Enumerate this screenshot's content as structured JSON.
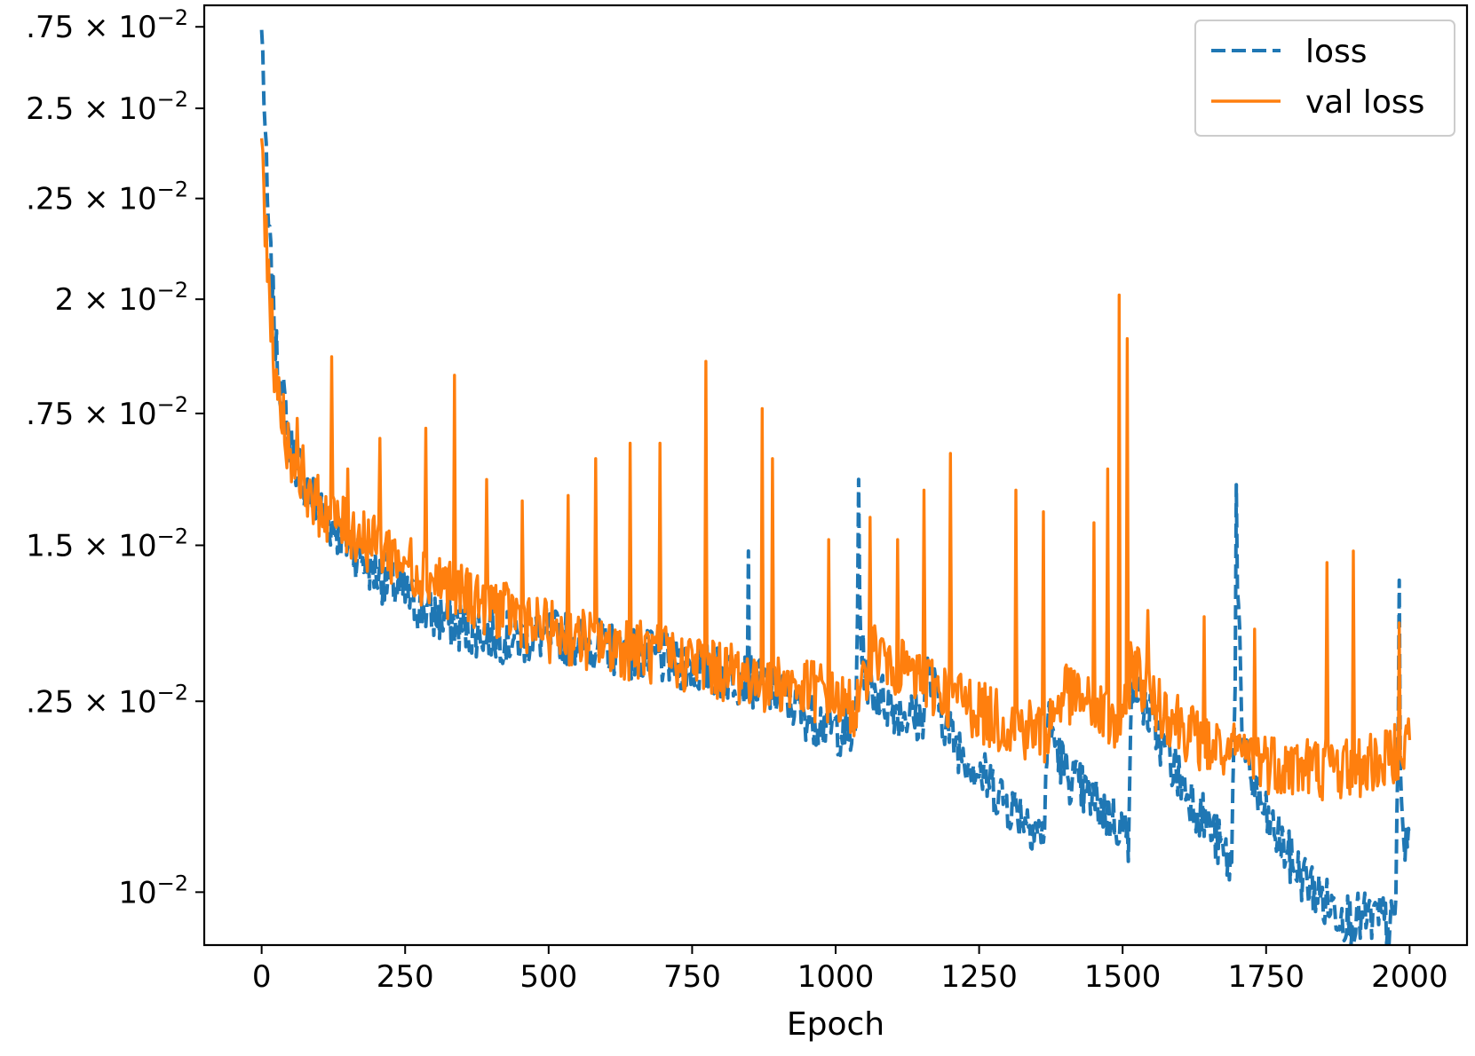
{
  "chart_data": {
    "type": "line",
    "xlabel": "Epoch",
    "ylabel": "",
    "title": "",
    "xlim": [
      -100,
      2100
    ],
    "ylim": [
      0.0094,
      0.0282
    ],
    "yscale": "log",
    "grid": false,
    "legend_position": "top-right",
    "x_ticks": [
      0,
      250,
      500,
      750,
      1000,
      1250,
      1500,
      1750,
      2000
    ],
    "x_tick_labels": [
      "0",
      "250",
      "500",
      "750",
      "1000",
      "1250",
      "1500",
      "1750",
      "2000"
    ],
    "y_ticks": [
      0.01,
      0.0125,
      0.015,
      0.0175,
      0.02,
      0.0225,
      0.025,
      0.0275
    ],
    "y_tick_labels": [
      {
        "mantissa": "",
        "exp": "−2"
      },
      {
        "mantissa": ".25",
        "exp": "−2"
      },
      {
        "mantissa": "1.5",
        "exp": "−2"
      },
      {
        "mantissa": ".75",
        "exp": "−2"
      },
      {
        "mantissa": "2",
        "exp": "−2"
      },
      {
        "mantissa": ".25",
        "exp": "−2"
      },
      {
        "mantissa": "2.5",
        "exp": "−2"
      },
      {
        "mantissa": ".75",
        "exp": "−2"
      }
    ],
    "series": [
      {
        "name": "loss",
        "color": "#1f77b4",
        "style": "dashed",
        "x": [
          0,
          10,
          25,
          50,
          75,
          100,
          150,
          200,
          250,
          300,
          350,
          400,
          450,
          500,
          550,
          600,
          650,
          700,
          750,
          800,
          850,
          900,
          950,
          1000,
          1035,
          1040,
          1045,
          1060,
          1100,
          1150,
          1160,
          1200,
          1250,
          1300,
          1350,
          1362,
          1370,
          1400,
          1450,
          1500,
          1510,
          1515,
          1550,
          1600,
          1650,
          1690,
          1700,
          1710,
          1750,
          1800,
          1850,
          1900,
          1950,
          1975,
          1980,
          1990,
          2000
        ],
        "y": [
          0.0274,
          0.022,
          0.0186,
          0.0167,
          0.016,
          0.0155,
          0.0149,
          0.0144,
          0.014,
          0.0137,
          0.0135,
          0.0134,
          0.0133,
          0.0134,
          0.0133,
          0.0132,
          0.0131,
          0.013,
          0.0129,
          0.0128,
          0.0127,
          0.0125,
          0.0122,
          0.012,
          0.0119,
          0.0148,
          0.0131,
          0.0126,
          0.0123,
          0.0121,
          0.0128,
          0.0119,
          0.0114,
          0.011,
          0.0107,
          0.0105,
          0.0121,
          0.0114,
          0.011,
          0.0107,
          0.0105,
          0.0128,
          0.0121,
          0.0113,
          0.0107,
          0.0102,
          0.0145,
          0.0116,
          0.0108,
          0.0102,
          0.0098,
          0.0096,
          0.0096,
          0.0095,
          0.0118,
          0.0104,
          0.0106
        ]
      },
      {
        "name": "val loss",
        "color": "#ff7f0e",
        "style": "solid",
        "x": [
          0,
          10,
          25,
          50,
          75,
          100,
          150,
          200,
          250,
          300,
          350,
          400,
          450,
          500,
          550,
          600,
          650,
          700,
          750,
          800,
          850,
          900,
          950,
          1000,
          1040,
          1060,
          1100,
          1150,
          1200,
          1250,
          1300,
          1350,
          1362,
          1400,
          1450,
          1500,
          1515,
          1550,
          1600,
          1650,
          1700,
          1750,
          1800,
          1850,
          1900,
          1950,
          2000
        ],
        "y": [
          0.0235,
          0.0205,
          0.0178,
          0.0165,
          0.016,
          0.0155,
          0.0151,
          0.0148,
          0.0145,
          0.0142,
          0.014,
          0.0138,
          0.0136,
          0.0134,
          0.0133,
          0.0132,
          0.0131,
          0.013,
          0.0129,
          0.0128,
          0.0127,
          0.0126,
          0.0125,
          0.0124,
          0.0122,
          0.0131,
          0.0129,
          0.0126,
          0.0124,
          0.0122,
          0.012,
          0.0119,
          0.0118,
          0.0125,
          0.0122,
          0.0119,
          0.0129,
          0.0124,
          0.012,
          0.0117,
          0.0116,
          0.0115,
          0.0114,
          0.0114,
          0.0114,
          0.0115,
          0.0118
        ]
      }
    ],
    "spikes": [
      {
        "series": "loss",
        "x": 0,
        "y": 0.0274
      },
      {
        "series": "loss",
        "x": 1040,
        "y": 0.0162
      },
      {
        "series": "loss",
        "x": 1698,
        "y": 0.0161
      },
      {
        "series": "loss",
        "x": 1982,
        "y": 0.0144
      },
      {
        "series": "loss",
        "x": 848,
        "y": 0.0149
      },
      {
        "series": "val loss",
        "x": 2,
        "y": 0.0238
      },
      {
        "series": "val loss",
        "x": 62,
        "y": 0.0174
      },
      {
        "series": "val loss",
        "x": 122,
        "y": 0.0187
      },
      {
        "series": "val loss",
        "x": 150,
        "y": 0.0164
      },
      {
        "series": "val loss",
        "x": 207,
        "y": 0.017
      },
      {
        "series": "val loss",
        "x": 286,
        "y": 0.0172
      },
      {
        "series": "val loss",
        "x": 337,
        "y": 0.0183
      },
      {
        "series": "val loss",
        "x": 393,
        "y": 0.0162
      },
      {
        "series": "val loss",
        "x": 455,
        "y": 0.0158
      },
      {
        "series": "val loss",
        "x": 535,
        "y": 0.0159
      },
      {
        "series": "val loss",
        "x": 582,
        "y": 0.0166
      },
      {
        "series": "val loss",
        "x": 643,
        "y": 0.0169
      },
      {
        "series": "val loss",
        "x": 695,
        "y": 0.0169
      },
      {
        "series": "val loss",
        "x": 774,
        "y": 0.0186
      },
      {
        "series": "val loss",
        "x": 873,
        "y": 0.0176
      },
      {
        "series": "val loss",
        "x": 890,
        "y": 0.0166
      },
      {
        "series": "val loss",
        "x": 989,
        "y": 0.0151
      },
      {
        "series": "val loss",
        "x": 1060,
        "y": 0.0155
      },
      {
        "series": "val loss",
        "x": 1108,
        "y": 0.0151
      },
      {
        "series": "val loss",
        "x": 1154,
        "y": 0.016
      },
      {
        "series": "val loss",
        "x": 1201,
        "y": 0.0167
      },
      {
        "series": "val loss",
        "x": 1315,
        "y": 0.016
      },
      {
        "series": "val loss",
        "x": 1363,
        "y": 0.0156
      },
      {
        "series": "val loss",
        "x": 1450,
        "y": 0.0154
      },
      {
        "series": "val loss",
        "x": 1494,
        "y": 0.0201
      },
      {
        "series": "val loss",
        "x": 1508,
        "y": 0.0191
      },
      {
        "series": "val loss",
        "x": 1475,
        "y": 0.0164
      },
      {
        "series": "val loss",
        "x": 1545,
        "y": 0.0139
      },
      {
        "series": "val loss",
        "x": 1643,
        "y": 0.0138
      },
      {
        "series": "val loss",
        "x": 1730,
        "y": 0.0136
      },
      {
        "series": "val loss",
        "x": 1857,
        "y": 0.0147
      },
      {
        "series": "val loss",
        "x": 1902,
        "y": 0.0149
      },
      {
        "series": "val loss",
        "x": 1983,
        "y": 0.0137
      }
    ],
    "noise": {
      "loss": 0.035,
      "val loss": 0.05
    },
    "legend_entries": [
      "loss",
      "val loss"
    ],
    "x_axis_label_text": "Epoch"
  }
}
